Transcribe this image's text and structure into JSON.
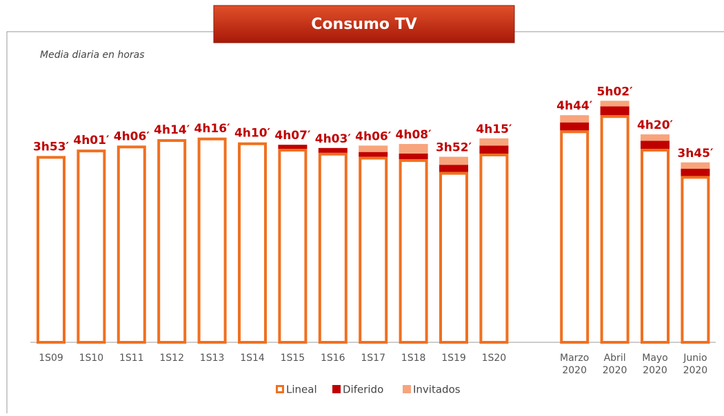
{
  "chart_data": {
    "type": "bar",
    "stacked": true,
    "title": "Consumo TV",
    "subtitle": "Media diaria en horas",
    "categories": [
      "1S09",
      "1S10",
      "1S11",
      "1S12",
      "1S13",
      "1S14",
      "1S15",
      "1S16",
      "1S17",
      "1S18",
      "1S19",
      "1S20",
      null,
      "Marzo\n2020",
      "Abril\n2020",
      "Mayo\n2020",
      "Junio\n2020"
    ],
    "series": [
      {
        "name": "Lineal",
        "color": "#f07020",
        "values": [
          233,
          241,
          246,
          254,
          256,
          250,
          242,
          237,
          232,
          229,
          213,
          236,
          null,
          265,
          284,
          242,
          208
        ]
      },
      {
        "name": "Diferido",
        "color": "#c00000",
        "values": [
          0,
          0,
          0,
          0,
          0,
          0,
          5,
          6,
          6,
          7,
          9,
          10,
          null,
          10,
          11,
          10,
          9
        ]
      },
      {
        "name": "Invitados",
        "color": "#f8a47c",
        "values": [
          0,
          0,
          0,
          0,
          0,
          0,
          0,
          0,
          8,
          12,
          10,
          9,
          null,
          9,
          7,
          8,
          8
        ]
      }
    ],
    "totals": [
      233,
      241,
      246,
      254,
      256,
      250,
      247,
      243,
      246,
      248,
      232,
      255,
      null,
      284,
      302,
      260,
      225
    ],
    "total_labels": [
      "3h53′",
      "4h01′",
      "4h06′",
      "4h14′",
      "4h16′",
      "4h10′",
      "4h07′",
      "4h03′",
      "4h06′",
      "4h08′",
      "3h52′",
      "4h15′",
      null,
      "4h44′",
      "5h02′",
      "4h20′",
      "3h45′"
    ],
    "ylim": [
      0,
      360
    ]
  }
}
